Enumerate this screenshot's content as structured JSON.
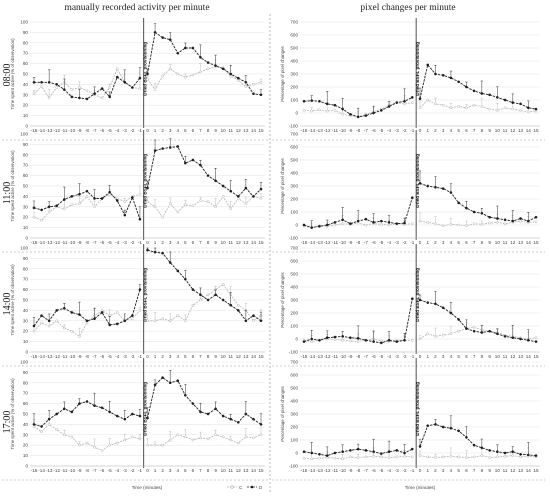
{
  "columns": [
    "manually recorded activity per minute",
    "pixel changes per minute"
  ],
  "rows": [
    "08:00",
    "11:00",
    "14:00",
    "17:00"
  ],
  "divider_label": "Dried BSFL provisioning",
  "x_axis_label": "Time (minutes)",
  "x_ticks": [
    "-15",
    "-14",
    "-13",
    "-12",
    "-11",
    "-10",
    "-9",
    "-8",
    "-7",
    "-6",
    "-5",
    "-4",
    "-3",
    "-2",
    "-1",
    "0",
    "1",
    "2",
    "3",
    "4",
    "5",
    "6",
    "7",
    "8",
    "9",
    "10",
    "11",
    "12",
    "13",
    "14",
    "15"
  ],
  "left_ylabel": "Time spent active (% of observation)",
  "right_ylabel": "Percentage of pixel changes",
  "left_yticks": [
    "0",
    "10",
    "20",
    "30",
    "40",
    "50",
    "60",
    "70",
    "80",
    "90",
    "100"
  ],
  "right_yticks": [
    "-100",
    "0",
    "100",
    "200",
    "300",
    "400",
    "500",
    "600",
    "700"
  ],
  "legend": {
    "c_label": "C",
    "d_label": "D"
  },
  "colors": {
    "c": "#b4b4b4",
    "d": "#1e1e1e",
    "grid": "#d9d9d9"
  },
  "chart_data": [
    {
      "type": "line",
      "row": "08:00",
      "metric": "manually recorded activity per minute",
      "ylim": [
        0,
        100
      ],
      "x": [
        -15,
        -14,
        -13,
        -12,
        -11,
        -10,
        -9,
        -8,
        -7,
        -6,
        -5,
        -4,
        -3,
        -2,
        -1,
        0,
        1,
        2,
        3,
        4,
        5,
        6,
        7,
        8,
        9,
        10,
        11,
        12,
        13,
        14,
        15
      ],
      "series": [
        {
          "name": "C",
          "values": [
            31,
            38,
            27,
            37,
            42,
            35,
            37,
            34,
            30,
            27,
            37,
            55,
            42,
            37,
            36,
            45,
            35,
            48,
            55,
            50,
            47,
            49,
            52,
            55,
            57,
            56,
            48,
            44,
            38,
            40,
            42
          ]
        },
        {
          "name": "D",
          "values": [
            42,
            42,
            42,
            40,
            35,
            28,
            27,
            26,
            31,
            36,
            28,
            47,
            42,
            37,
            46,
            50,
            90,
            85,
            83,
            70,
            75,
            75,
            66,
            61,
            58,
            55,
            50,
            46,
            42,
            31,
            30
          ]
        }
      ]
    },
    {
      "type": "line",
      "row": "08:00",
      "metric": "pixel changes per minute",
      "ylim": [
        -100,
        700
      ],
      "x": [
        -15,
        -14,
        -13,
        -12,
        -11,
        -10,
        -9,
        -8,
        -7,
        -6,
        -5,
        -4,
        -3,
        -2,
        -1,
        0,
        1,
        2,
        3,
        4,
        5,
        6,
        7,
        8,
        9,
        10,
        11,
        12,
        13,
        14,
        15
      ],
      "series": [
        {
          "name": "C",
          "values": [
            20,
            15,
            25,
            15,
            20,
            -10,
            -20,
            -30,
            -10,
            10,
            30,
            60,
            80,
            70,
            80,
            40,
            100,
            70,
            60,
            40,
            50,
            40,
            60,
            50,
            30,
            20,
            40,
            30,
            20,
            10,
            15
          ]
        },
        {
          "name": "D",
          "values": [
            90,
            95,
            90,
            70,
            60,
            30,
            -10,
            -30,
            -20,
            0,
            20,
            50,
            80,
            90,
            120,
            110,
            370,
            300,
            290,
            270,
            240,
            200,
            170,
            150,
            140,
            120,
            100,
            80,
            70,
            40,
            30
          ]
        }
      ]
    },
    {
      "type": "line",
      "row": "11:00",
      "metric": "manually recorded activity per minute",
      "ylim": [
        0,
        100
      ],
      "x": [
        -15,
        -14,
        -13,
        -12,
        -11,
        -10,
        -9,
        -8,
        -7,
        -6,
        -5,
        -4,
        -3,
        -2,
        -1,
        0,
        1,
        2,
        3,
        4,
        5,
        6,
        7,
        8,
        9,
        10,
        11,
        12,
        13,
        14,
        15
      ],
      "series": [
        {
          "name": "C",
          "values": [
            20,
            17,
            25,
            30,
            28,
            32,
            33,
            40,
            30,
            38,
            42,
            38,
            35,
            40,
            42,
            35,
            30,
            20,
            33,
            25,
            32,
            31,
            36,
            35,
            30,
            40,
            28,
            38,
            33,
            40,
            38
          ]
        },
        {
          "name": "D",
          "values": [
            29,
            27,
            30,
            31,
            37,
            40,
            42,
            45,
            38,
            38,
            44,
            36,
            22,
            39,
            18,
            48,
            84,
            86,
            87,
            88,
            72,
            75,
            70,
            60,
            55,
            50,
            45,
            40,
            48,
            40,
            47
          ]
        }
      ]
    },
    {
      "type": "line",
      "row": "11:00",
      "metric": "pixel changes per minute",
      "ylim": [
        -100,
        700
      ],
      "x": [
        -15,
        -14,
        -13,
        -12,
        -11,
        -10,
        -9,
        -8,
        -7,
        -6,
        -5,
        -4,
        -3,
        -2,
        -1,
        0,
        1,
        2,
        3,
        4,
        5,
        6,
        7,
        8,
        9,
        10,
        11,
        12,
        13,
        14,
        15
      ],
      "series": [
        {
          "name": "C",
          "values": [
            -10,
            -20,
            -5,
            -10,
            0,
            10,
            5,
            15,
            0,
            10,
            5,
            0,
            10,
            5,
            10,
            30,
            20,
            10,
            -5,
            5,
            0,
            -5,
            10,
            5,
            15,
            20,
            10,
            20,
            30,
            20,
            25
          ]
        },
        {
          "name": "D",
          "values": [
            0,
            -20,
            -10,
            0,
            20,
            40,
            10,
            30,
            45,
            20,
            30,
            20,
            10,
            15,
            210,
            320,
            300,
            290,
            280,
            250,
            170,
            130,
            100,
            90,
            60,
            50,
            40,
            30,
            50,
            30,
            60
          ]
        }
      ]
    },
    {
      "type": "line",
      "row": "14:00",
      "metric": "manually recorded activity per minute",
      "ylim": [
        0,
        100
      ],
      "x": [
        -15,
        -14,
        -13,
        -12,
        -11,
        -10,
        -9,
        -8,
        -7,
        -6,
        -5,
        -4,
        -3,
        -2,
        -1,
        0,
        1,
        2,
        3,
        4,
        5,
        6,
        7,
        8,
        9,
        10,
        11,
        12,
        13,
        14,
        15
      ],
      "series": [
        {
          "name": "C",
          "values": [
            20,
            28,
            25,
            30,
            23,
            20,
            15,
            28,
            35,
            40,
            35,
            38,
            30,
            32,
            40,
            30,
            30,
            32,
            30,
            35,
            30,
            45,
            50,
            55,
            60,
            65,
            55,
            45,
            40,
            30,
            35
          ]
        },
        {
          "name": "D",
          "values": [
            25,
            35,
            30,
            40,
            42,
            38,
            36,
            30,
            32,
            38,
            26,
            27,
            30,
            35,
            60,
            98,
            96,
            95,
            86,
            78,
            70,
            60,
            55,
            50,
            55,
            50,
            45,
            40,
            30,
            35,
            30
          ]
        }
      ]
    },
    {
      "type": "line",
      "row": "14:00",
      "metric": "pixel changes per minute",
      "ylim": [
        -100,
        700
      ],
      "x": [
        -15,
        -14,
        -13,
        -12,
        -11,
        -10,
        -9,
        -8,
        -7,
        -6,
        -5,
        -4,
        -3,
        -2,
        -1,
        0,
        1,
        2,
        3,
        4,
        5,
        6,
        7,
        8,
        9,
        10,
        11,
        12,
        13,
        14,
        15
      ],
      "series": [
        {
          "name": "C",
          "values": [
            -10,
            -20,
            -10,
            0,
            -5,
            -10,
            -15,
            -20,
            -10,
            0,
            -15,
            -20,
            -10,
            -10,
            -10,
            0,
            40,
            20,
            30,
            40,
            60,
            80,
            90,
            70,
            60,
            50,
            30,
            20,
            10,
            0,
            10
          ]
        },
        {
          "name": "D",
          "values": [
            -20,
            0,
            -10,
            10,
            15,
            20,
            10,
            5,
            -10,
            -20,
            -30,
            -10,
            -20,
            -10,
            310,
            300,
            280,
            270,
            240,
            200,
            150,
            80,
            60,
            50,
            60,
            40,
            20,
            10,
            0,
            -10,
            -20
          ]
        }
      ]
    },
    {
      "type": "line",
      "row": "17:00",
      "metric": "manually recorded activity per minute",
      "ylim": [
        0,
        100
      ],
      "x": [
        -15,
        -14,
        -13,
        -12,
        -11,
        -10,
        -9,
        -8,
        -7,
        -6,
        -5,
        -4,
        -3,
        -2,
        -1,
        0,
        1,
        2,
        3,
        4,
        5,
        6,
        7,
        8,
        9,
        10,
        11,
        12,
        13,
        14,
        15
      ],
      "series": [
        {
          "name": "C",
          "values": [
            38,
            33,
            40,
            35,
            30,
            28,
            20,
            22,
            18,
            15,
            20,
            22,
            25,
            28,
            26,
            20,
            20,
            20,
            25,
            30,
            28,
            25,
            27,
            26,
            30,
            28,
            25,
            22,
            28,
            27,
            30
          ]
        },
        {
          "name": "D",
          "values": [
            40,
            38,
            45,
            50,
            55,
            52,
            60,
            62,
            58,
            56,
            52,
            48,
            45,
            50,
            48,
            46,
            78,
            85,
            80,
            82,
            68,
            60,
            52,
            50,
            55,
            48,
            45,
            42,
            50,
            45,
            40
          ]
        }
      ]
    },
    {
      "type": "line",
      "row": "17:00",
      "metric": "pixel changes per minute",
      "ylim": [
        -100,
        700
      ],
      "x": [
        -15,
        -14,
        -13,
        -12,
        -11,
        -10,
        -9,
        -8,
        -7,
        -6,
        -5,
        -4,
        -3,
        -2,
        -1,
        0,
        1,
        2,
        3,
        4,
        5,
        6,
        7,
        8,
        9,
        10,
        11,
        12,
        13,
        14,
        15
      ],
      "series": [
        {
          "name": "C",
          "values": [
            -40,
            -45,
            -40,
            -35,
            -40,
            -45,
            -30,
            -35,
            -30,
            -25,
            -30,
            -35,
            -30,
            -25,
            -30,
            -20,
            -30,
            -35,
            -30,
            -25,
            -30,
            -35,
            -30,
            -20,
            -35,
            -30,
            -25,
            -20,
            -30,
            -25,
            -30
          ]
        },
        {
          "name": "D",
          "values": [
            10,
            0,
            -10,
            -20,
            0,
            10,
            20,
            30,
            20,
            10,
            -5,
            10,
            20,
            0,
            30,
            50,
            210,
            220,
            200,
            190,
            170,
            120,
            60,
            40,
            20,
            10,
            0,
            10,
            -10,
            -15,
            -20
          ]
        }
      ]
    }
  ]
}
